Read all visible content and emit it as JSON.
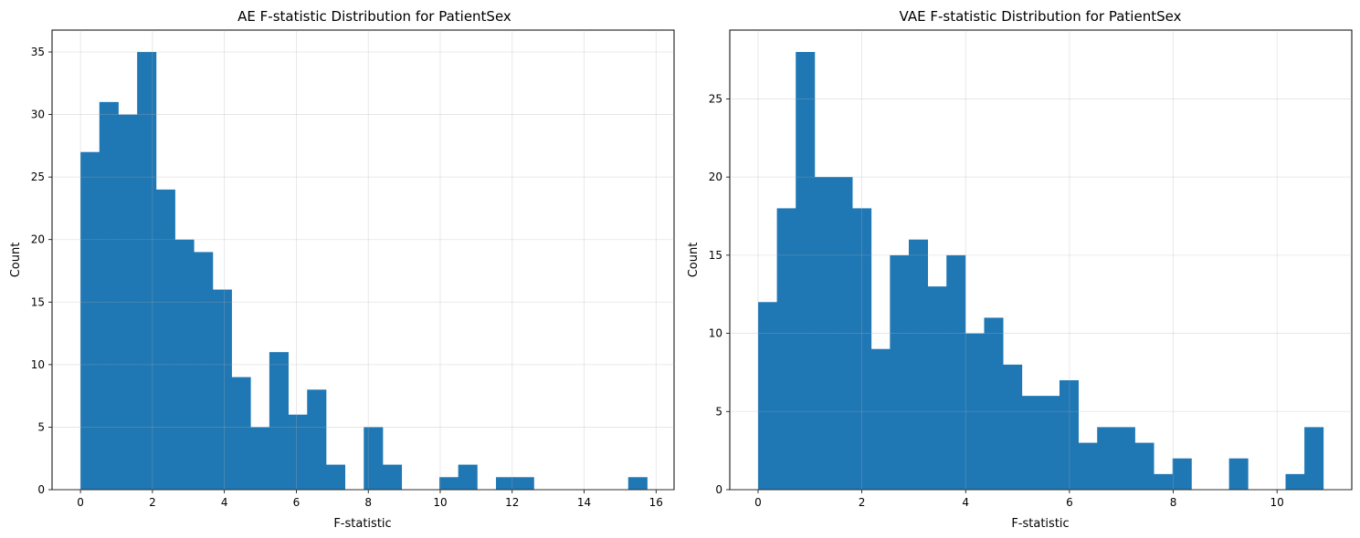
{
  "chart_data": [
    {
      "type": "bar",
      "title": "AE F-statistic Distribution for PatientSex",
      "xlabel": "F-statistic",
      "ylabel": "Count",
      "xlim": [
        -0.79,
        16.5
      ],
      "ylim": [
        0,
        36.75
      ],
      "xticks": [
        0,
        2,
        4,
        6,
        8,
        10,
        12,
        14,
        16
      ],
      "yticks": [
        0,
        5,
        10,
        15,
        20,
        25,
        30,
        35
      ],
      "bin_edges": [
        0,
        0.525,
        1.05,
        1.575,
        2.1,
        2.625,
        3.15,
        3.675,
        4.2,
        4.725,
        5.25,
        5.775,
        6.3,
        6.825,
        7.35,
        7.875,
        8.4,
        8.925,
        9.45,
        9.975,
        10.5,
        11.025,
        11.55,
        12.075,
        12.6,
        13.125,
        13.65,
        14.175,
        14.7,
        15.225,
        15.75
      ],
      "values": [
        27,
        31,
        30,
        35,
        24,
        20,
        19,
        16,
        9,
        5,
        11,
        6,
        8,
        2,
        0,
        5,
        2,
        0,
        0,
        1,
        2,
        0,
        1,
        1,
        0,
        0,
        0,
        0,
        0,
        1
      ],
      "grid": true,
      "color": "#1f77b4"
    },
    {
      "type": "bar",
      "title": "VAE F-statistic Distribution for PatientSex",
      "xlabel": "F-statistic",
      "ylabel": "Count",
      "xlim": [
        -0.545,
        11.44
      ],
      "ylim": [
        0,
        29.4
      ],
      "xticks": [
        0,
        2,
        4,
        6,
        8,
        10
      ],
      "yticks": [
        0,
        5,
        10,
        15,
        20,
        25
      ],
      "bin_edges": [
        0,
        0.363,
        0.726,
        1.089,
        1.452,
        1.815,
        2.178,
        2.541,
        2.904,
        3.267,
        3.63,
        3.993,
        4.356,
        4.719,
        5.082,
        5.445,
        5.808,
        6.171,
        6.534,
        6.897,
        7.26,
        7.623,
        7.986,
        8.349,
        8.712,
        9.075,
        9.438,
        9.801,
        10.164,
        10.527,
        10.89
      ],
      "values": [
        12,
        18,
        28,
        20,
        20,
        18,
        9,
        15,
        16,
        13,
        15,
        10,
        11,
        8,
        6,
        6,
        7,
        3,
        4,
        4,
        3,
        1,
        2,
        0,
        0,
        2,
        0,
        0,
        1,
        4
      ],
      "grid": true,
      "color": "#1f77b4"
    }
  ]
}
